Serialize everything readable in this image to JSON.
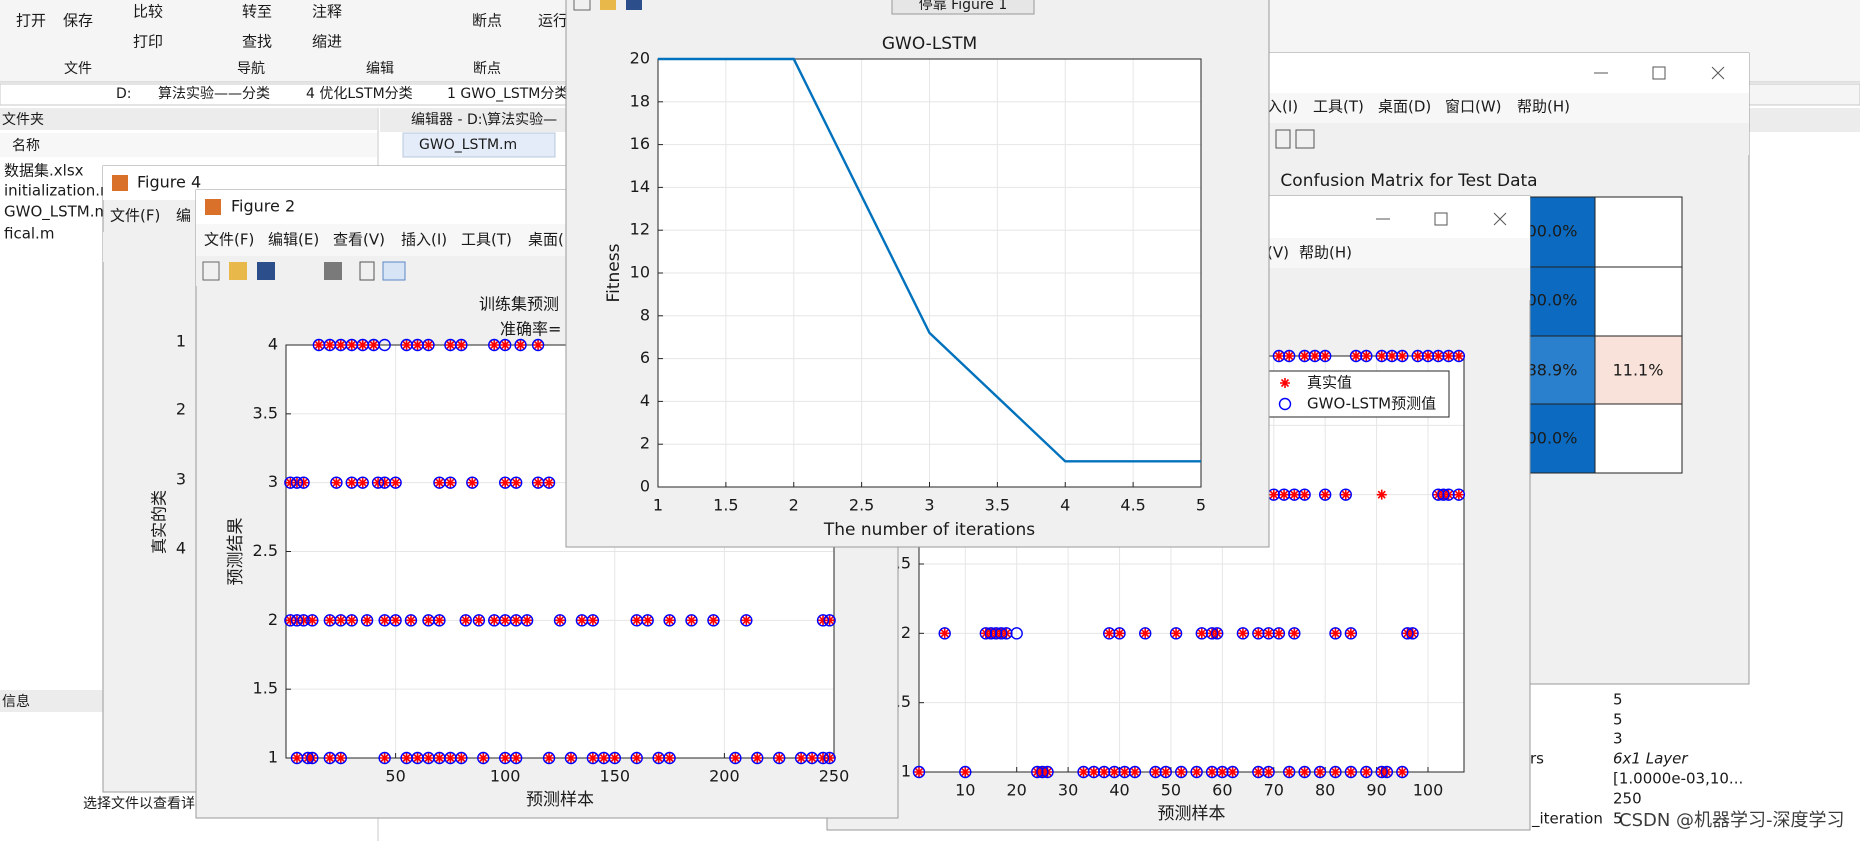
{
  "toolstrip": {
    "buttons": [
      "打开",
      "保存",
      "比较",
      "打印",
      "转至",
      "查找",
      "注释",
      "缩进",
      "断点",
      "运行"
    ],
    "groups": [
      "文件",
      "导航",
      "编辑",
      "断点"
    ]
  },
  "address_bar": [
    "D:",
    "算法实验——分类",
    "4 优化LSTM分类",
    "1 GWO_LSTM分类"
  ],
  "file_panel": {
    "title": "文件夹",
    "column": "名称",
    "files": [
      "数据集.xlsx",
      "initialization.m",
      "GWO_LSTM.m",
      "fical.m"
    ],
    "details_title": "信息",
    "hint": "选择文件以查看详"
  },
  "editor": {
    "title": "编辑器 - D:\\算法实验—",
    "tab": "GWO_LSTM.m"
  },
  "figure_4": {
    "title": "Figure 4",
    "menu": [
      "文件(F)",
      "编"
    ]
  },
  "figure_2": {
    "title": "Figure 2",
    "menu": [
      "文件(F)",
      "编辑(E)",
      "查看(V)",
      "插入(I)",
      "工具(T)",
      "桌面("
    ]
  },
  "figure_3": {
    "menu": [
      "(V)",
      "帮助(H)"
    ]
  },
  "figure_1": {
    "dock_button": "停靠 Figure 1"
  },
  "confusion_window": {
    "menu": [
      "入(I)",
      "工具(T)",
      "桌面(D)",
      "窗口(W)",
      "帮助(H)"
    ],
    "title": "Confusion Matrix for Test Data",
    "cells": [
      "00.0%",
      "00.0%",
      "88.9%",
      "11.1%",
      "00.0%"
    ]
  },
  "workspace": {
    "names": [
      "rs",
      "_iteration"
    ],
    "values": [
      "5",
      "5",
      "3",
      "6x1 Layer",
      "[1.0000e-03,10...",
      "250",
      "5"
    ]
  },
  "watermark": "CSDN @机器学习-深度学习",
  "chart_data": [
    {
      "type": "line",
      "title": "GWO-LSTM",
      "xlabel": "The number of iterations",
      "ylabel": "Fitness",
      "x": [
        1,
        2,
        3,
        4,
        5
      ],
      "series": [
        {
          "color": "#0072bd",
          "values": [
            20,
            20,
            7.2,
            1.2,
            1.2
          ]
        }
      ],
      "xlim": [
        1,
        5
      ],
      "ylim": [
        0,
        20
      ],
      "xticks": [
        1,
        1.5,
        2,
        2.5,
        3,
        3.5,
        4,
        4.5,
        5
      ],
      "yticks": [
        0,
        2,
        4,
        6,
        8,
        10,
        12,
        14,
        16,
        18,
        20
      ],
      "grid": true
    },
    {
      "type": "scatter",
      "title": "训练集预测",
      "subtitle": "准确率=",
      "xlabel": "预测样本",
      "ylabel": "预测结果",
      "x": [
        15,
        20,
        25,
        30,
        35,
        40,
        45,
        55,
        60,
        65,
        75,
        80,
        95,
        100,
        107,
        115,
        2,
        5,
        8,
        23,
        30,
        35,
        42,
        45,
        50,
        70,
        75,
        85,
        100,
        105,
        115,
        120,
        2,
        5,
        8,
        12,
        20,
        25,
        30,
        37,
        45,
        50,
        57,
        65,
        70,
        82,
        88,
        95,
        100,
        105,
        110,
        125,
        135,
        140,
        160,
        165,
        175,
        185,
        195,
        210,
        245,
        248,
        5,
        10,
        12,
        20,
        25,
        45,
        55,
        60,
        65,
        70,
        75,
        80,
        90,
        100,
        105,
        120,
        130,
        140,
        145,
        150,
        160,
        170,
        175,
        205,
        215,
        225,
        235,
        240,
        245,
        248
      ],
      "series": [
        {
          "color": "#ff0000",
          "marker": "star",
          "values": [
            4,
            4,
            4,
            4,
            4,
            4,
            null,
            4,
            4,
            4,
            4,
            4,
            4,
            4,
            4,
            4,
            3,
            3,
            3,
            3,
            3,
            3,
            3,
            3,
            3,
            3,
            3,
            3,
            3,
            3,
            3,
            3,
            2,
            2,
            2,
            2,
            2,
            2,
            2,
            2,
            2,
            2,
            2,
            2,
            2,
            2,
            2,
            2,
            2,
            2,
            2,
            2,
            2,
            2,
            2,
            2,
            2,
            2,
            2,
            2,
            2,
            2,
            1,
            1,
            1,
            1,
            1,
            1,
            1,
            1,
            1,
            1,
            1,
            1,
            1,
            1,
            1,
            1,
            1,
            1,
            1,
            1,
            1,
            1,
            1,
            1,
            1,
            1,
            1,
            1,
            1,
            1
          ]
        },
        {
          "color": "#0000ff",
          "marker": "circle",
          "values": [
            4,
            4,
            4,
            4,
            4,
            4,
            4,
            4,
            4,
            4,
            4,
            4,
            4,
            4,
            4,
            4,
            3,
            3,
            3,
            3,
            3,
            3,
            3,
            3,
            3,
            3,
            3,
            3,
            3,
            3,
            3,
            3,
            2,
            2,
            2,
            2,
            2,
            2,
            2,
            2,
            2,
            2,
            2,
            2,
            2,
            2,
            2,
            2,
            2,
            2,
            2,
            2,
            2,
            2,
            2,
            2,
            2,
            2,
            2,
            2,
            2,
            2,
            1,
            1,
            1,
            1,
            1,
            1,
            1,
            1,
            1,
            1,
            1,
            1,
            1,
            1,
            1,
            1,
            1,
            1,
            1,
            1,
            1,
            1,
            1,
            1,
            1,
            1,
            1,
            1,
            1,
            1
          ]
        }
      ],
      "xlim": [
        0,
        250
      ],
      "ylim": [
        1,
        4
      ],
      "xticks": [
        50,
        100,
        150,
        200,
        250
      ],
      "yticks": [
        1,
        1.5,
        2,
        2.5,
        3,
        3.5,
        4
      ],
      "grid": true
    },
    {
      "type": "scatter",
      "xlabel": "预测样本",
      "x": [
        71,
        73,
        76,
        78,
        80,
        86,
        88,
        91,
        93,
        95,
        98,
        100,
        102,
        104,
        106,
        70,
        72,
        74,
        76,
        80,
        84,
        91,
        102,
        103,
        104,
        106,
        6,
        14,
        15,
        16,
        17,
        18,
        20,
        38,
        40,
        45,
        51,
        56,
        58,
        59,
        64,
        67,
        69,
        71,
        74,
        82,
        85,
        96,
        97,
        1,
        10,
        24,
        25,
        26,
        33,
        35,
        37,
        39,
        41,
        43,
        47,
        49,
        52,
        55,
        58,
        60,
        62,
        67,
        69,
        73,
        76,
        79,
        82,
        85,
        88,
        91,
        92,
        95
      ],
      "series": [
        {
          "name": "真实值",
          "color": "#ff0000",
          "marker": "star",
          "values": [
            4,
            4,
            4,
            4,
            4,
            4,
            4,
            4,
            4,
            4,
            4,
            4,
            4,
            4,
            4,
            3,
            3,
            3,
            3,
            3,
            3,
            3,
            3,
            3,
            3,
            3,
            2,
            2,
            2,
            2,
            2,
            2,
            null,
            2,
            2,
            2,
            2,
            2,
            2,
            2,
            2,
            2,
            2,
            2,
            2,
            2,
            2,
            2,
            2,
            1,
            1,
            1,
            1,
            1,
            1,
            1,
            1,
            1,
            1,
            1,
            1,
            1,
            1,
            1,
            1,
            1,
            1,
            1,
            1,
            1,
            1,
            1,
            1,
            1,
            1,
            1,
            1,
            1
          ]
        },
        {
          "name": "GWO-LSTM预测值",
          "color": "#0000ff",
          "marker": "circle",
          "values": [
            4,
            4,
            4,
            4,
            4,
            4,
            4,
            4,
            4,
            4,
            4,
            4,
            4,
            4,
            4,
            3,
            3,
            3,
            3,
            3,
            3,
            null,
            3,
            3,
            3,
            3,
            2,
            2,
            2,
            2,
            2,
            2,
            2,
            2,
            2,
            2,
            2,
            2,
            2,
            2,
            2,
            2,
            2,
            2,
            2,
            2,
            2,
            2,
            2,
            1,
            1,
            1,
            1,
            1,
            1,
            1,
            1,
            1,
            1,
            1,
            1,
            1,
            1,
            1,
            1,
            1,
            1,
            1,
            1,
            1,
            1,
            1,
            1,
            1,
            1,
            1,
            1,
            1
          ]
        }
      ],
      "xlim": [
        1,
        107
      ],
      "ylim": [
        1,
        4
      ],
      "xticks": [
        10,
        20,
        30,
        40,
        50,
        60,
        70,
        80,
        90,
        100
      ],
      "yticks": [
        1,
        1.5,
        2,
        2.5,
        3,
        3.5,
        4
      ],
      "grid": true,
      "legend": "upper right"
    },
    {
      "type": "confusion",
      "ylabel": "真实的类",
      "categories": [
        "1",
        "2",
        "3",
        "4"
      ]
    }
  ]
}
